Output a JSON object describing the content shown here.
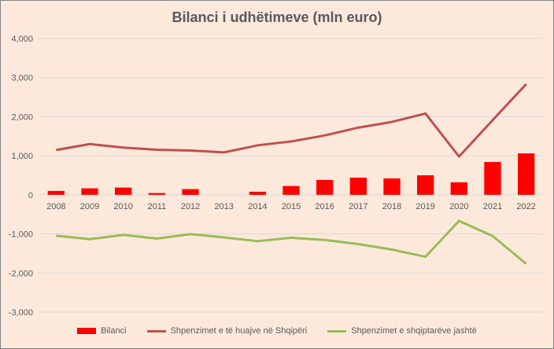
{
  "chart_data": {
    "type": "bar+line",
    "title": "Bilanci i udhëtimeve (mln euro)",
    "xlabel": "",
    "ylabel": "",
    "ylim": [
      -3000,
      4000
    ],
    "yticks": [
      "-3,000",
      "-2,000",
      "-1,000",
      "0",
      "1,000",
      "2,000",
      "3,000",
      "4,000"
    ],
    "ytick_values": [
      -3000,
      -2000,
      -1000,
      0,
      1000,
      2000,
      3000,
      4000
    ],
    "grid": true,
    "legend_position": "bottom",
    "categories": [
      "2008",
      "2009",
      "2010",
      "2011",
      "2012",
      "2013",
      "2014",
      "2015",
      "2016",
      "2017",
      "2018",
      "2019",
      "2020",
      "2021",
      "2022"
    ],
    "series": [
      {
        "name": "Bilanci",
        "type": "bar",
        "color": "#ff0000",
        "values": [
          100,
          166,
          186,
          46,
          146,
          0,
          80,
          226,
          380,
          440,
          420,
          500,
          320,
          840,
          1060
        ]
      },
      {
        "name": "Shpenzimet e të huajve në Shqipëri",
        "type": "line",
        "color": "#c0504d",
        "values": [
          1146,
          1300,
          1210,
          1154,
          1134,
          1086,
          1266,
          1366,
          1520,
          1720,
          1866,
          2080,
          980,
          1910,
          2834
        ]
      },
      {
        "name": "Shpenzimet e shqiptarëve jashtë",
        "type": "line",
        "color": "#9bbb59",
        "values": [
          -1046,
          -1134,
          -1026,
          -1120,
          -1006,
          -1090,
          -1186,
          -1100,
          -1154,
          -1260,
          -1400,
          -1586,
          -666,
          -1054,
          -1766
        ]
      }
    ]
  }
}
